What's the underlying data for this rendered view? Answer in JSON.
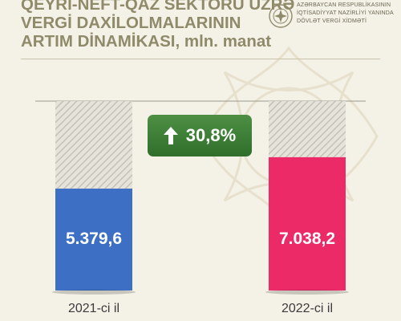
{
  "header": {
    "title_lines": [
      "QEYRİ-NEFT-QAZ SEKTORU ÜZRƏ",
      "VERGİ DAXİLOLMALARININ",
      "ARTIM DİNAMİKASI,"
    ],
    "title_unit": "mln. manat",
    "org_lines": [
      "AZƏRBAYCAN RESPUBLİKASININ",
      "İQTİSADİYYAT NAZİRLİYİ YANINDA",
      "DÖVLƏT VERGİ XİDMƏTİ"
    ],
    "logo_icon": "state-emblem-icon"
  },
  "growth_badge": {
    "icon": "arrow-up-icon",
    "text": "30,8%",
    "color": "#3d7f37"
  },
  "chart_data": {
    "type": "bar",
    "title": "QEYRİ-NEFT-QAZ SEKTORU ÜZRƏ VERGİ DAXİLOLMALARININ ARTIM DİNAMİKASI, mln. manat",
    "categories": [
      "2021-ci il",
      "2022-ci il"
    ],
    "values": [
      5379.6,
      7038.2
    ],
    "value_labels": [
      "5.379,6",
      "7.038,2"
    ],
    "colors": [
      "#3d6fc4",
      "#ec2a68"
    ],
    "ylim": [
      0,
      10000
    ],
    "xlabel": "",
    "ylabel": "",
    "grid": false
  }
}
